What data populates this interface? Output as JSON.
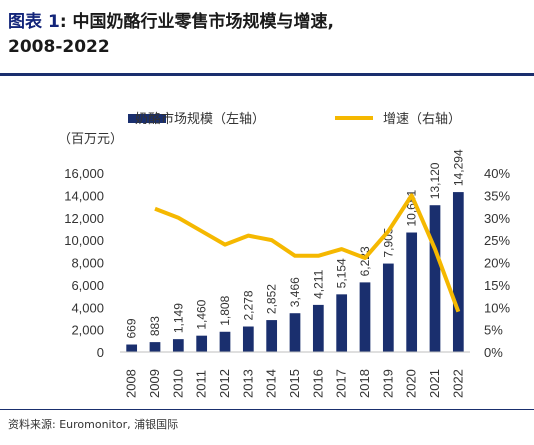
{
  "title": {
    "label": "图表",
    "index": "1",
    "text": ": 中国奶酪行业零售市场规模与增速,",
    "subtitle": "2008-2022"
  },
  "source": "资料来源: Euromonitor, 浦银国际",
  "colors": {
    "bar": "#1a2f6e",
    "line": "#f5b800"
  },
  "chart_data": {
    "type": "bar",
    "categories": [
      "2008",
      "2009",
      "2010",
      "2011",
      "2012",
      "2013",
      "2014",
      "2015",
      "2016",
      "2017",
      "2018",
      "2019",
      "2020",
      "2021",
      "2022"
    ],
    "series": [
      {
        "name": "奶酪市场规模（左轴）",
        "type": "bar",
        "axis": "left",
        "values": [
          669,
          883,
          1149,
          1460,
          1808,
          2278,
          2852,
          3466,
          4211,
          5154,
          6223,
          7905,
          10681,
          13120,
          14294
        ]
      },
      {
        "name": "增速（右轴）",
        "type": "line",
        "axis": "right",
        "values": [
          null,
          32,
          30,
          27,
          24,
          26,
          25,
          21.5,
          21.5,
          23,
          21,
          27,
          35,
          23,
          9
        ]
      }
    ],
    "left_unit": "（百万元）",
    "ylim_left": [
      0,
      16000
    ],
    "yticks_left": [
      "0",
      "2,000",
      "4,000",
      "6,000",
      "8,000",
      "10,000",
      "12,000",
      "14,000",
      "16,000"
    ],
    "ylim_right": [
      0,
      40
    ],
    "yticks_right": [
      "0%",
      "5%",
      "10%",
      "15%",
      "20%",
      "25%",
      "30%",
      "35%",
      "40%"
    ],
    "data_labels": [
      "669",
      "883",
      "1,149",
      "1,460",
      "1,808",
      "2,278",
      "2,852",
      "3,466",
      "4,211",
      "5,154",
      "6,223",
      "7,905",
      "10,681",
      "13,120",
      "14,294"
    ],
    "grid": false,
    "legend": "top"
  }
}
